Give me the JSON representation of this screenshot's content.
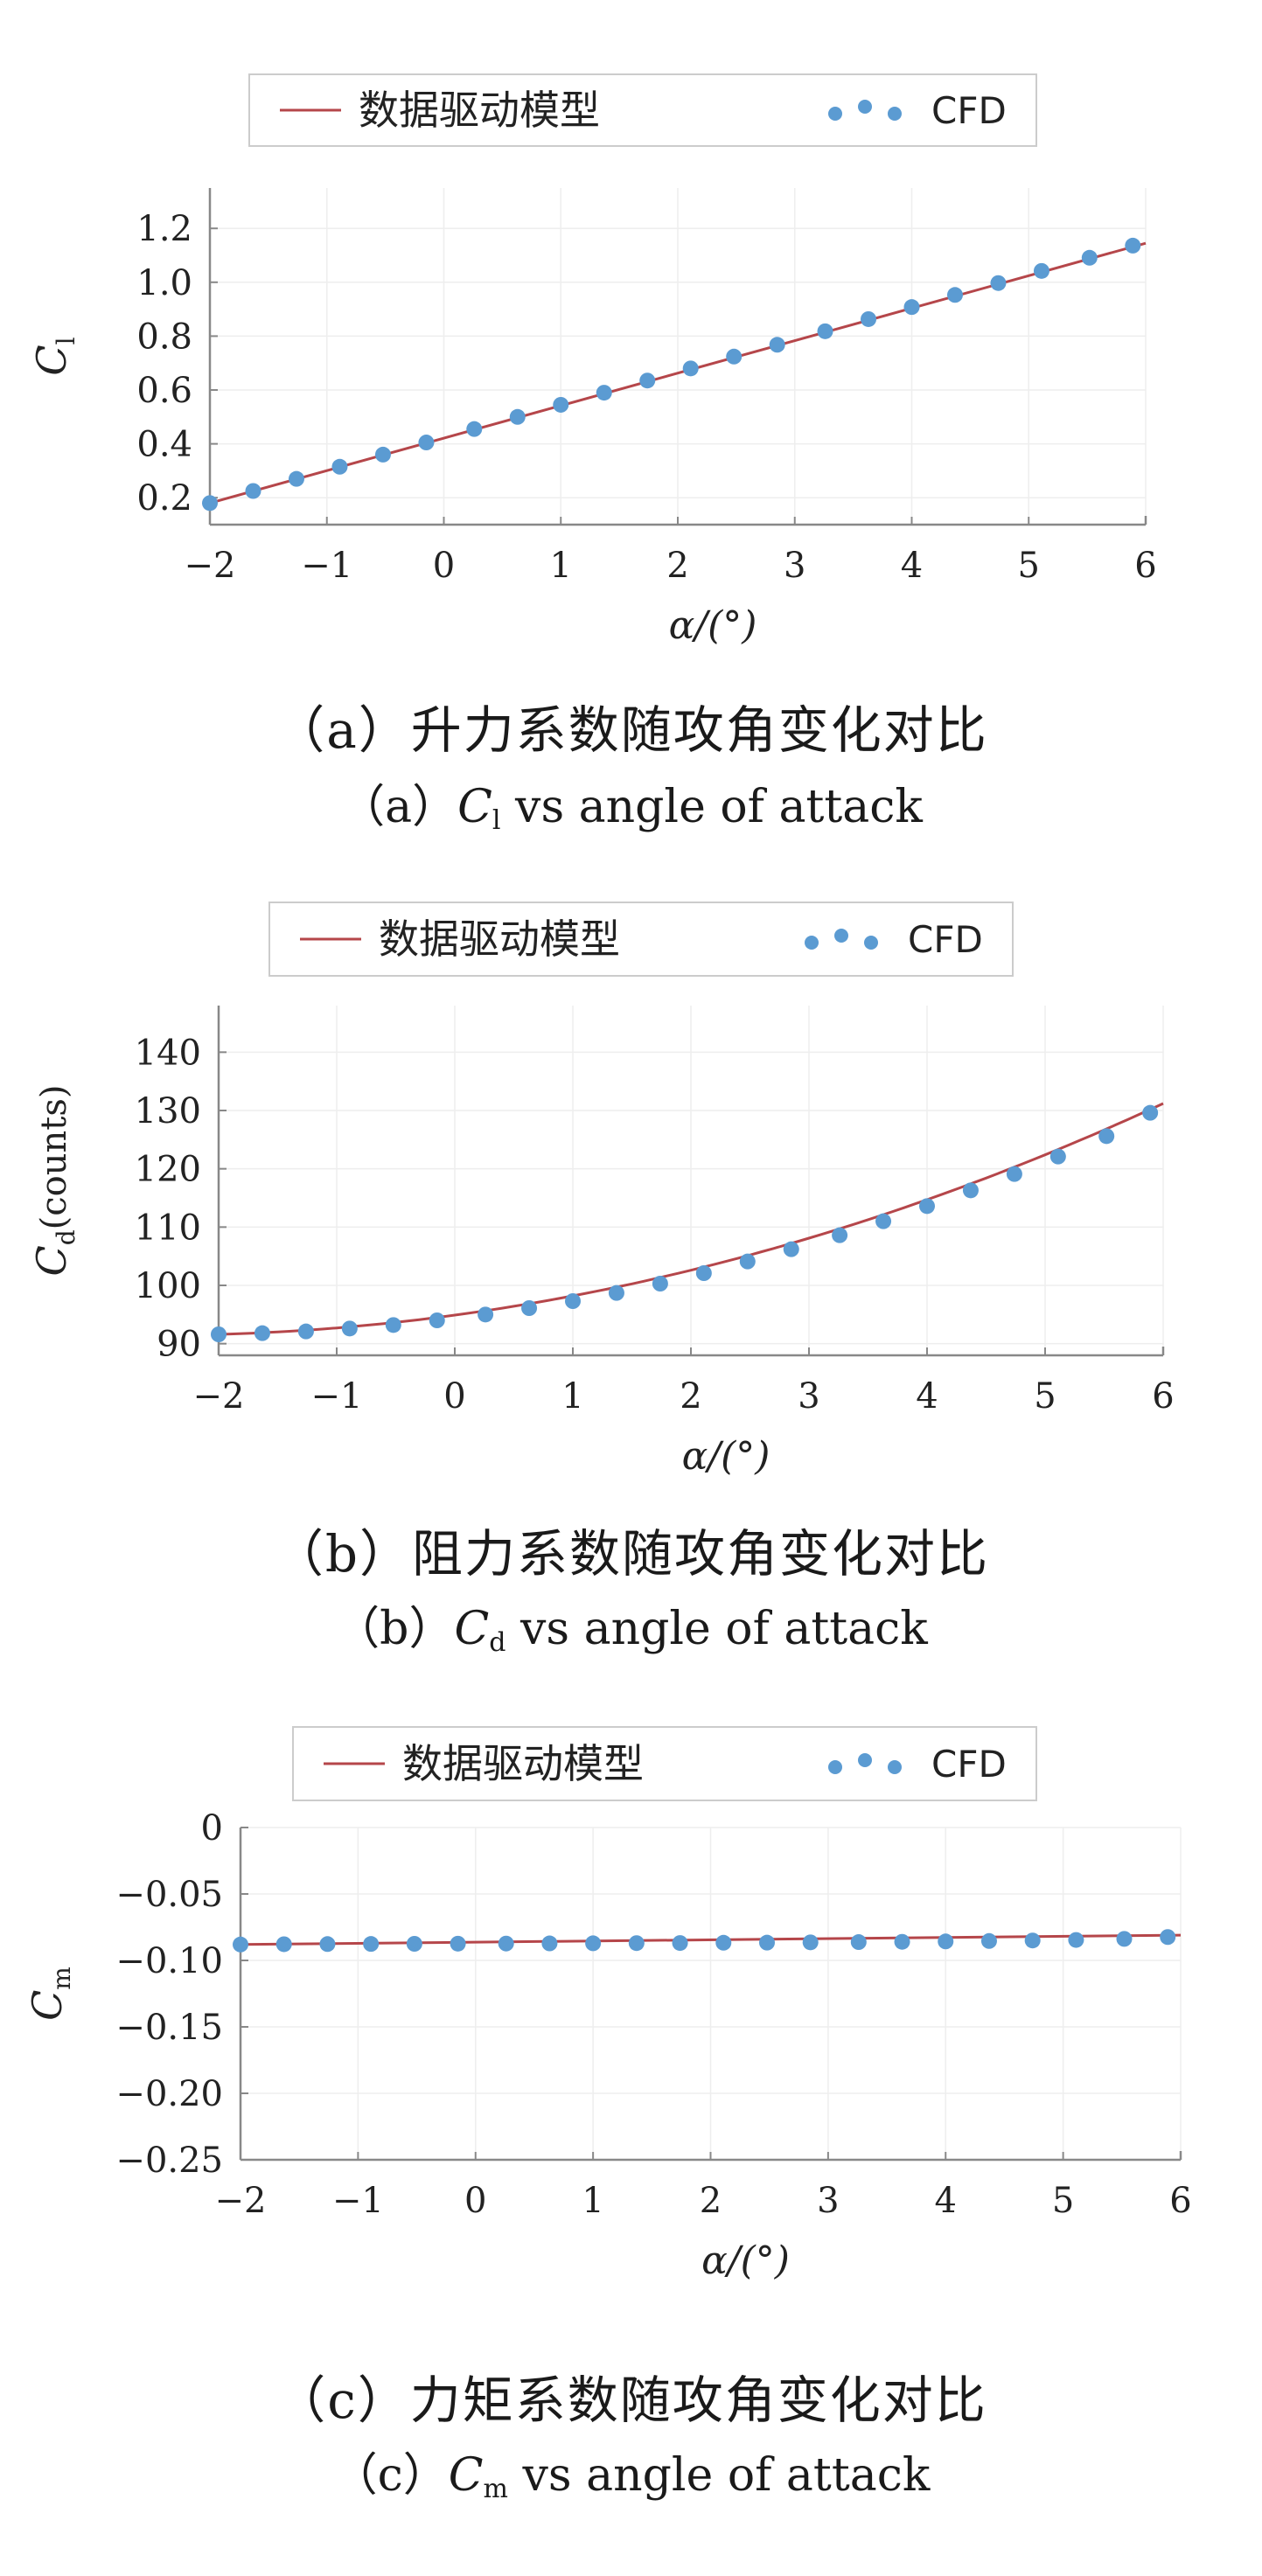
{
  "legend": {
    "model": "数据驱动模型",
    "cfd": "CFD"
  },
  "colors": {
    "model": "#b5464a",
    "cfd": "#5b9bd2",
    "axis": "#888888",
    "grid": "#eeeeee"
  },
  "panels": [
    {
      "caption_zh": "（a）升力系数随攻角变化对比",
      "caption_en_prefix": "（a）",
      "caption_en_sym": "C",
      "caption_en_sub": "l",
      "caption_en_rest": " vs angle of attack"
    },
    {
      "caption_zh": "（b）阻力系数随攻角变化对比",
      "caption_en_prefix": "（b）",
      "caption_en_sym": "C",
      "caption_en_sub": "d",
      "caption_en_rest": " vs angle of attack"
    },
    {
      "caption_zh": "（c）力矩系数随攻角变化对比",
      "caption_en_prefix": "（c）",
      "caption_en_sym": "C",
      "caption_en_sub": "m",
      "caption_en_rest": " vs angle of attack"
    }
  ],
  "chart_data": [
    {
      "type": "line",
      "xlabel": "α/(°)",
      "ylabel": "C",
      "ylabel_sub": "l",
      "xlim": [
        -2,
        6
      ],
      "ylim": [
        0.1,
        1.35
      ],
      "xticks": [
        -2,
        -1,
        0,
        1,
        2,
        3,
        4,
        5,
        6
      ],
      "xtick_labels": [
        "−2",
        "−1",
        "0",
        "1",
        "2",
        "3",
        "4",
        "5",
        "6"
      ],
      "yticks": [
        0.2,
        0.4,
        0.6,
        0.8,
        1.0,
        1.2
      ],
      "ytick_labels": [
        "0.2",
        "0.4",
        "0.6",
        "0.8",
        "1.0",
        "1.2"
      ],
      "series": [
        {
          "name": "数据驱动模型",
          "kind": "line",
          "x": [
            -2,
            6
          ],
          "y": [
            0.18,
            1.145
          ]
        },
        {
          "name": "CFD",
          "kind": "scatter",
          "x": [
            -2.0,
            -1.63,
            -1.26,
            -0.89,
            -0.52,
            -0.15,
            0.26,
            0.63,
            1.0,
            1.37,
            1.74,
            2.11,
            2.48,
            2.85,
            3.26,
            3.63,
            4.0,
            4.37,
            4.74,
            5.11,
            5.52,
            5.89
          ],
          "y": [
            0.18,
            0.225,
            0.27,
            0.315,
            0.36,
            0.405,
            0.455,
            0.5,
            0.545,
            0.59,
            0.635,
            0.68,
            0.724,
            0.768,
            0.818,
            0.863,
            0.908,
            0.953,
            0.997,
            1.042,
            1.091,
            1.136
          ]
        }
      ]
    },
    {
      "type": "line",
      "xlabel": "α/(°)",
      "ylabel": "C",
      "ylabel_sub": "d",
      "ylabel_suffix": "(counts)",
      "xlim": [
        -2,
        6
      ],
      "ylim": [
        88,
        148
      ],
      "xticks": [
        -2,
        -1,
        0,
        1,
        2,
        3,
        4,
        5,
        6
      ],
      "xtick_labels": [
        "−2",
        "−1",
        "0",
        "1",
        "2",
        "3",
        "4",
        "5",
        "6"
      ],
      "yticks": [
        90,
        100,
        110,
        120,
        130,
        140
      ],
      "ytick_labels": [
        "90",
        "100",
        "110",
        "120",
        "130",
        "140"
      ],
      "series": [
        {
          "name": "数据驱动模型",
          "kind": "curve",
          "fn": "drag",
          "x": [
            -2,
            6
          ]
        },
        {
          "name": "CFD",
          "kind": "scatter",
          "x": [
            -2.0,
            -1.63,
            -1.26,
            -0.89,
            -0.52,
            -0.15,
            0.26,
            0.63,
            1.0,
            1.37,
            1.74,
            2.11,
            2.48,
            2.85,
            3.26,
            3.63,
            4.0,
            4.37,
            4.74,
            5.11,
            5.52,
            5.89
          ],
          "y": [
            91.6,
            91.8,
            92.1,
            92.6,
            93.2,
            94.0,
            95.0,
            96.1,
            97.3,
            98.7,
            100.3,
            102.1,
            104.1,
            106.2,
            108.6,
            111.0,
            113.6,
            116.3,
            119.1,
            122.1,
            125.6,
            129.6
          ]
        }
      ]
    },
    {
      "type": "line",
      "xlabel": "α/(°)",
      "ylabel": "C",
      "ylabel_sub": "m",
      "xlim": [
        -2,
        6
      ],
      "ylim": [
        -0.25,
        0
      ],
      "xticks": [
        -2,
        -1,
        0,
        1,
        2,
        3,
        4,
        5,
        6
      ],
      "xtick_labels": [
        "−2",
        "−1",
        "0",
        "1",
        "2",
        "3",
        "4",
        "5",
        "6"
      ],
      "yticks": [
        0,
        -0.05,
        -0.1,
        -0.15,
        -0.2,
        -0.25
      ],
      "ytick_labels": [
        "0",
        "−0.05",
        "−0.10",
        "−0.15",
        "−0.20",
        "−0.25"
      ],
      "series": [
        {
          "name": "数据驱动模型",
          "kind": "line",
          "x": [
            -2,
            6
          ],
          "y": [
            -0.088,
            -0.081
          ]
        },
        {
          "name": "CFD",
          "kind": "scatter",
          "x": [
            -2.0,
            -1.63,
            -1.26,
            -0.89,
            -0.52,
            -0.15,
            0.26,
            0.63,
            1.0,
            1.37,
            1.74,
            2.11,
            2.48,
            2.85,
            3.26,
            3.63,
            4.0,
            4.37,
            4.74,
            5.11,
            5.52,
            5.89
          ],
          "y": [
            -0.088,
            -0.0878,
            -0.0877,
            -0.0876,
            -0.0875,
            -0.0874,
            -0.0873,
            -0.0872,
            -0.0871,
            -0.087,
            -0.0869,
            -0.0867,
            -0.0866,
            -0.0864,
            -0.0862,
            -0.086,
            -0.0857,
            -0.0854,
            -0.085,
            -0.0846,
            -0.0838,
            -0.0824
          ]
        }
      ]
    }
  ]
}
